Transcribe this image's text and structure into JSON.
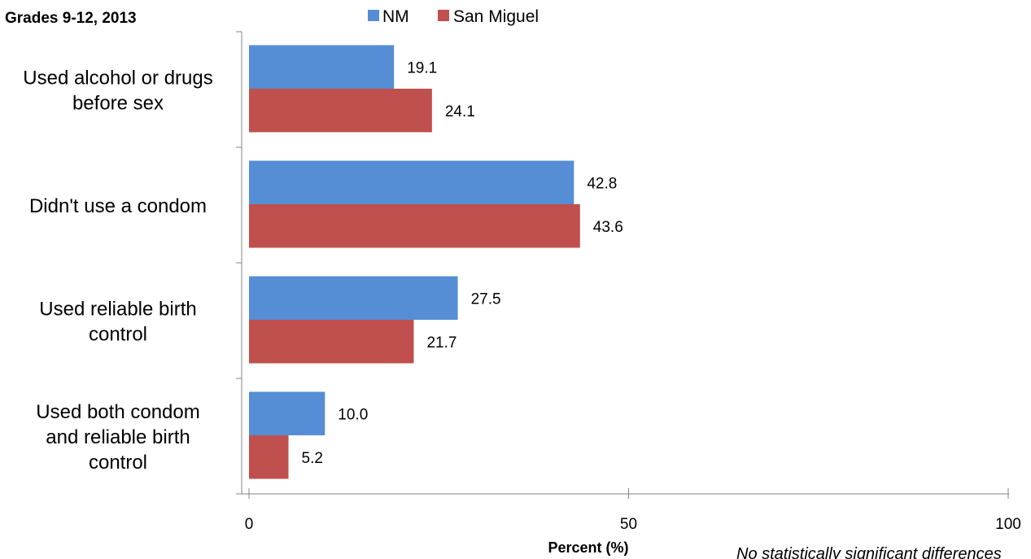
{
  "chart_data": {
    "type": "bar",
    "orientation": "horizontal",
    "subtitle": "Grades 9-12, 2013",
    "categories": [
      [
        "Used alcohol or drugs",
        "before sex"
      ],
      [
        "Didn't use a condom"
      ],
      [
        "Used reliable birth",
        "control"
      ],
      [
        "Used both condom",
        "and reliable birth",
        "control"
      ]
    ],
    "series": [
      {
        "name": "NM",
        "color": "#558ED5",
        "values": [
          19.1,
          42.8,
          27.5,
          10.0
        ],
        "labels": [
          "19.1",
          "42.8",
          "27.5",
          "10.0"
        ]
      },
      {
        "name": "San Miguel",
        "color": "#C0504D",
        "values": [
          24.1,
          43.6,
          21.7,
          5.2
        ],
        "labels": [
          "24.1",
          "43.6",
          "21.7",
          "5.2"
        ]
      }
    ],
    "xlabel": "Percent (%)",
    "xlim": [
      0,
      100
    ],
    "xticks": [
      0,
      50,
      100
    ],
    "xtick_labels": [
      "0",
      "50",
      "100"
    ],
    "legend_position": "top",
    "grid": false,
    "footnote": "No statistically significant differences"
  }
}
